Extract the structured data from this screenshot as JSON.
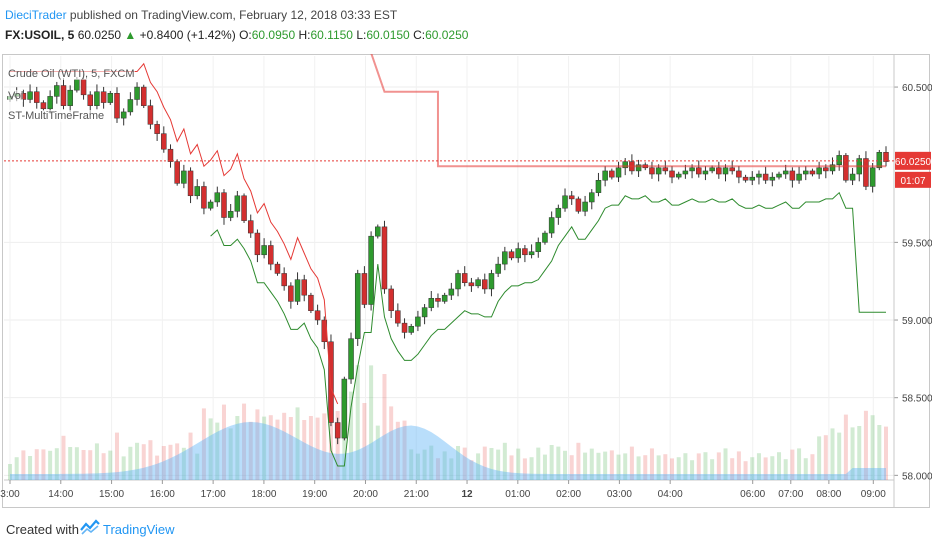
{
  "header": {
    "author": "DieciTrader",
    "published_text": "published on TradingView.com, February 12, 2018 03:33 EST",
    "symbol": "FX:USOIL, 5",
    "last": "60.0250",
    "change": "+0.8400 (+1.42%)",
    "o_label": "O:",
    "o": "60.0950",
    "h_label": "H:",
    "h": "60.1150",
    "l_label": "L:",
    "l": "60.0150",
    "c_label": "C:",
    "c": "60.0250"
  },
  "legend": {
    "line1": "Crude Oil (WTI), 5, FXCM",
    "line2": "Vol",
    "line3": "ST-MultiTimeFrame"
  },
  "footer": {
    "created_with": "Created with",
    "brand": "TradingView"
  },
  "colors": {
    "up": "#2e9a2e",
    "down": "#d32f2f",
    "resistance": "#e53935",
    "support": "#2e8b2e",
    "volume_ma": "#90caf9",
    "price_label_bg": "#e53935"
  },
  "chart_data": {
    "type": "candlestick",
    "symbol": "USOIL",
    "x_tick_labels": [
      "3:00",
      "14:00",
      "15:00",
      "16:00",
      "17:00",
      "18:00",
      "19:00",
      "20:00",
      "21:00",
      "12",
      "01:00",
      "02:00",
      "03:00",
      "04:00",
      "06:00",
      "07:00",
      "08:00",
      "09:00"
    ],
    "y_tick_labels": [
      "60.5000",
      "59.5000",
      "59.0000",
      "58.5000",
      "58.0000"
    ],
    "ylim": [
      57.97,
      60.7
    ],
    "price_label": "60.0250",
    "countdown_label": "01:07",
    "close_series": [
      60.44,
      60.46,
      60.42,
      60.47,
      60.4,
      60.36,
      60.44,
      60.51,
      60.38,
      60.48,
      60.55,
      60.45,
      60.38,
      60.47,
      60.4,
      60.46,
      60.3,
      60.34,
      60.42,
      60.5,
      60.38,
      60.26,
      60.2,
      60.1,
      60.02,
      59.88,
      59.96,
      59.8,
      59.86,
      59.72,
      59.76,
      59.82,
      59.66,
      59.7,
      59.8,
      59.64,
      59.56,
      59.42,
      59.48,
      59.36,
      59.3,
      59.22,
      59.12,
      59.26,
      59.16,
      59.06,
      59.0,
      58.86,
      58.34,
      58.24,
      58.62,
      58.88,
      59.3,
      59.1,
      59.54,
      59.6,
      59.2,
      59.06,
      58.98,
      58.92,
      58.96,
      59.02,
      59.08,
      59.14,
      59.12,
      59.16,
      59.2,
      59.3,
      59.24,
      59.22,
      59.26,
      59.2,
      59.3,
      59.36,
      59.44,
      59.4,
      59.46,
      59.42,
      59.44,
      59.5,
      59.56,
      59.66,
      59.72,
      59.8,
      59.78,
      59.7,
      59.76,
      59.82,
      59.9,
      59.96,
      59.92,
      59.98,
      60.02,
      59.96,
      60.0,
      59.98,
      59.94,
      59.98,
      59.96,
      59.92,
      59.94,
      59.96,
      59.98,
      59.94,
      59.96,
      59.98,
      59.94,
      59.98,
      59.96,
      59.92,
      59.9,
      59.92,
      59.94,
      59.9,
      59.92,
      59.94,
      59.96,
      59.9,
      59.94,
      59.96,
      59.94,
      59.98,
      59.96,
      60.0,
      60.06,
      59.9,
      59.94,
      60.04,
      59.86,
      59.98,
      60.08,
      60.02
    ]
  }
}
